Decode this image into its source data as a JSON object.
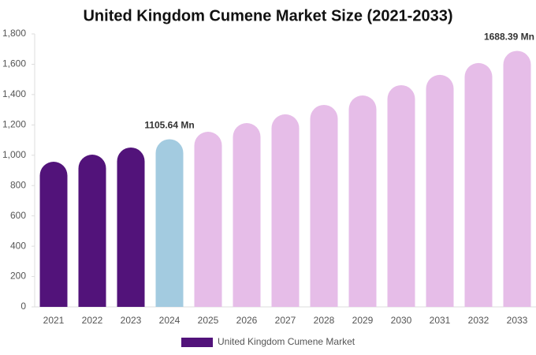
{
  "chart_data": {
    "type": "bar",
    "title": "United Kingdom Cumene Market Size (2021-2033)",
    "categories": [
      "2021",
      "2022",
      "2023",
      "2024",
      "2025",
      "2026",
      "2027",
      "2028",
      "2029",
      "2030",
      "2031",
      "2032",
      "2033"
    ],
    "series": [
      {
        "name": "United Kingdom Cumene Market",
        "color": "#52137a",
        "values": [
          957,
          1004,
          1051,
          1105.64,
          1155,
          1212,
          1270,
          1332,
          1394,
          1462,
          1530,
          1608,
          1688.39
        ],
        "value_labels": [
          null,
          null,
          null,
          "1105.64 Mn",
          null,
          null,
          null,
          null,
          null,
          null,
          null,
          null,
          "1688.39 Mn"
        ],
        "colors": [
          "#52137a",
          "#52137a",
          "#52137a",
          "#a3cbe0",
          "#e6bde8",
          "#e6bde8",
          "#e6bde8",
          "#e6bde8",
          "#e6bde8",
          "#e6bde8",
          "#e6bde8",
          "#e6bde8",
          "#e6bde8"
        ]
      }
    ],
    "ylim": [
      0,
      1800
    ],
    "yticks": [
      0,
      200,
      400,
      600,
      800,
      {
        "value": 1000,
        "label": "1,000"
      },
      {
        "value": 1200,
        "label": "1,200"
      },
      {
        "value": 1400,
        "label": "1,400"
      },
      {
        "value": 1600,
        "label": "1,600"
      },
      {
        "value": 1800,
        "label": "1,800"
      }
    ],
    "grid": false,
    "legend": "bottom"
  }
}
